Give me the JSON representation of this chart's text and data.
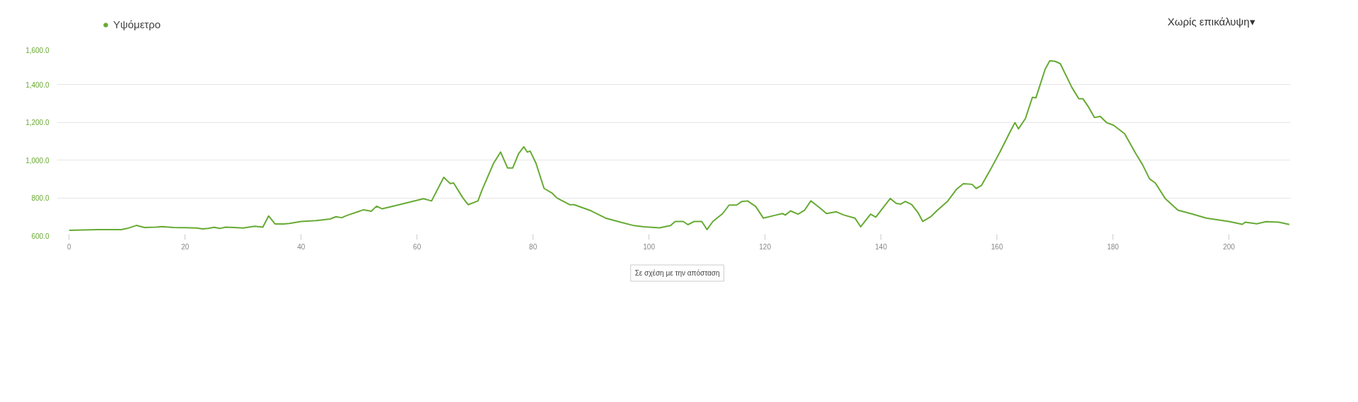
{
  "chart_data": {
    "type": "line",
    "legend": "top left",
    "grid": "y",
    "marker": "none",
    "line_style": "solid",
    "xlim": [
      -2.1,
      210.6
    ],
    "xticks": [
      0,
      20,
      40,
      60,
      80,
      100,
      120,
      140,
      160,
      180,
      200
    ],
    "ylim": [
      600,
      1600
    ],
    "yticks": [
      {
        "value": 600,
        "label": "600.0"
      },
      {
        "value": 800,
        "label": "800.0"
      },
      {
        "value": 1000,
        "label": "1,000.0"
      },
      {
        "value": 1200,
        "label": "1,200.0"
      },
      {
        "value": 1400,
        "label": "1,400.0"
      },
      {
        "value": 1600,
        "label": "1,600.0"
      }
    ],
    "annotations": [
      "Χωρίς επικάλυψη▾",
      "Σε σχέση με την απόσταση"
    ],
    "series": [
      {
        "name": "Υψόμετρο",
        "color": "#66aa33",
        "x": [
          0,
          5,
          9,
          10,
          11.6,
          13,
          15,
          16,
          18,
          20,
          22,
          23,
          24,
          25,
          26,
          27,
          29,
          30,
          32,
          33.4,
          34.4,
          35.5,
          37,
          38,
          40,
          42.6,
          45,
          46,
          47,
          48,
          50.8,
          52.1,
          53,
          54,
          57.3,
          61.1,
          62.5,
          64.6,
          65.7,
          66.3,
          67.9,
          68.8,
          70.5,
          71.2,
          73.2,
          74.4,
          75.6,
          76.5,
          77.5,
          78.4,
          79,
          79.5,
          80.5,
          81.9,
          83.3,
          84.1,
          86.3,
          87.1,
          89.8,
          92.5,
          95.2,
          97.4,
          99.1,
          101.8,
          103.7,
          104.5,
          105.9,
          106.7,
          107.8,
          109.1,
          110,
          111,
          112.7,
          113.8,
          115.1,
          116,
          117,
          118.4,
          119.7,
          121.9,
          123,
          123.5,
          124.4,
          125.7,
          126.8,
          127.9,
          129.3,
          130.6,
          132.3,
          133.6,
          135.5,
          136.5,
          138.2,
          139.1,
          140.2,
          141.6,
          142.6,
          143.4,
          144.2,
          145.3,
          146.4,
          147.2,
          148.6,
          149.6,
          151.5,
          153,
          154.2,
          155.7,
          156.4,
          157.3,
          158.8,
          160.5,
          162.2,
          163.1,
          163.7,
          164.9,
          166.1,
          166.7,
          168.3,
          169.1,
          170,
          170.9,
          172.9,
          174.1,
          174.8,
          175.8,
          176.8,
          177.8,
          178.9,
          180.1,
          182,
          183.9,
          185.1,
          186.3,
          187.3,
          189,
          191.2,
          193.6,
          196.1,
          200,
          202.3,
          202.8,
          204.8,
          206.4,
          208.6,
          210.4
        ],
        "values": [
          628,
          632,
          632,
          638,
          654,
          643,
          645,
          648,
          643,
          642,
          640,
          636,
          638,
          644,
          638,
          645,
          642,
          640,
          650,
          645,
          704,
          662,
          662,
          665,
          675,
          680,
          688,
          700,
          695,
          708,
          737,
          729,
          756,
          742,
          767,
          796,
          784,
          909,
          876,
          879,
          800,
          764,
          784,
          842,
          984,
          1043,
          959,
          959,
          1034,
          1071,
          1043,
          1048,
          984,
          850,
          825,
          800,
          764,
          764,
          734,
          693,
          670,
          653,
          647,
          641,
          653,
          675,
          675,
          658,
          675,
          675,
          632,
          675,
          717,
          762,
          762,
          781,
          784,
          754,
          693,
          709,
          717,
          709,
          731,
          714,
          734,
          784,
          751,
          717,
          726,
          709,
          693,
          647,
          714,
          698,
          742,
          797,
          771,
          767,
          781,
          764,
          721,
          675,
          701,
          731,
          783,
          845,
          875,
          872,
          850,
          865,
          946,
          1043,
          1147,
          1199,
          1166,
          1221,
          1333,
          1330,
          1482,
          1527,
          1524,
          1512,
          1386,
          1326,
          1326,
          1281,
          1226,
          1232,
          1199,
          1185,
          1140,
          1036,
          976,
          901,
          879,
          797,
          735,
          715,
          693,
          675,
          660,
          671,
          663,
          674,
          671,
          659
        ]
      }
    ]
  }
}
